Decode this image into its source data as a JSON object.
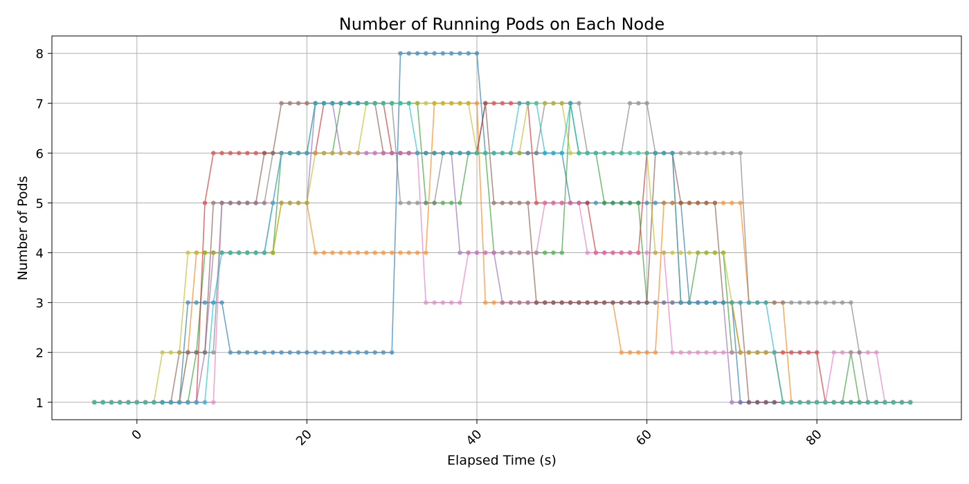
{
  "chart_data": {
    "type": "line",
    "title": "Number of Running Pods on Each Node",
    "xlabel": "Elapsed Time (s)",
    "ylabel": "Number of Pods",
    "xlim": [
      -10,
      97
    ],
    "ylim": [
      0.65,
      8.35
    ],
    "xticks": [
      0,
      20,
      40,
      60,
      80
    ],
    "yticks": [
      1,
      2,
      3,
      4,
      5,
      6,
      7,
      8
    ],
    "xtick_rotation": 45,
    "grid": true,
    "legend": "none",
    "x": [
      -5,
      -4,
      -3,
      -2,
      -1,
      0,
      1,
      2,
      3,
      4,
      5,
      6,
      7,
      8,
      9,
      10,
      11,
      12,
      13,
      14,
      15,
      16,
      17,
      18,
      19,
      20,
      21,
      22,
      23,
      24,
      25,
      26,
      27,
      28,
      29,
      30,
      31,
      32,
      33,
      34,
      35,
      36,
      37,
      38,
      39,
      40,
      41,
      42,
      43,
      44,
      45,
      46,
      47,
      48,
      49,
      50,
      51,
      52,
      53,
      54,
      55,
      56,
      57,
      58,
      59,
      60,
      61,
      62,
      63,
      64,
      65,
      66,
      67,
      68,
      69,
      70,
      71,
      72,
      73,
      74,
      75,
      76,
      77,
      78,
      79,
      80,
      81,
      82,
      83,
      84,
      85,
      86,
      87,
      88,
      89,
      90,
      91
    ],
    "series": [
      {
        "color": "#1f77b4",
        "values": [
          1,
          1,
          1,
          1,
          1,
          1,
          1,
          1,
          1,
          1,
          1,
          3,
          3,
          3,
          3,
          3,
          2,
          2,
          2,
          2,
          2,
          2,
          2,
          2,
          2,
          2,
          2,
          2,
          2,
          2,
          2,
          2,
          2,
          2,
          2,
          2,
          8,
          8,
          8,
          8,
          8,
          8,
          8,
          8,
          8,
          8,
          6,
          6,
          6,
          6,
          6,
          6,
          6,
          6,
          6,
          6,
          5,
          5,
          5,
          5,
          5,
          5,
          5,
          5,
          5,
          5,
          5,
          5,
          5,
          5,
          3,
          3,
          3,
          3,
          3,
          3,
          1,
          1,
          1,
          1,
          1,
          1,
          1,
          1,
          1,
          1,
          1,
          1,
          1,
          1,
          1,
          1,
          1,
          1,
          1,
          1,
          1
        ]
      },
      {
        "color": "#ff7f0e",
        "values": [
          1,
          1,
          1,
          1,
          1,
          1,
          1,
          1,
          1,
          1,
          1,
          2,
          4,
          4,
          4,
          4,
          4,
          4,
          4,
          4,
          4,
          4,
          5,
          5,
          5,
          5,
          4,
          4,
          4,
          4,
          4,
          4,
          4,
          4,
          4,
          4,
          4,
          4,
          4,
          4,
          7,
          7,
          7,
          7,
          7,
          7,
          3,
          3,
          3,
          3,
          3,
          3,
          3,
          3,
          3,
          3,
          3,
          3,
          3,
          3,
          3,
          3,
          2,
          2,
          2,
          2,
          2,
          5,
          5,
          5,
          5,
          5,
          5,
          5,
          5,
          5,
          5,
          3,
          3,
          3,
          3,
          3,
          1,
          1,
          1,
          1,
          1,
          1,
          1,
          1,
          1,
          1,
          1,
          1,
          1,
          1,
          1
        ]
      },
      {
        "color": "#2ca02c",
        "values": [
          1,
          1,
          1,
          1,
          1,
          1,
          1,
          1,
          1,
          1,
          1,
          1,
          2,
          4,
          4,
          4,
          4,
          4,
          4,
          4,
          4,
          4,
          6,
          6,
          6,
          6,
          6,
          6,
          6,
          7,
          7,
          7,
          7,
          7,
          7,
          7,
          7,
          7,
          7,
          5,
          5,
          5,
          5,
          5,
          6,
          6,
          6,
          4,
          4,
          4,
          4,
          4,
          4,
          4,
          4,
          4,
          7,
          6,
          6,
          6,
          5,
          5,
          5,
          5,
          5,
          3,
          3,
          3,
          3,
          3,
          3,
          4,
          4,
          4,
          4,
          2,
          2,
          2,
          2,
          2,
          2,
          1,
          1,
          1,
          1,
          1,
          1,
          1,
          1,
          2,
          1,
          1,
          1,
          1,
          1,
          1,
          1
        ]
      },
      {
        "color": "#d62728",
        "values": [
          1,
          1,
          1,
          1,
          1,
          1,
          1,
          1,
          1,
          1,
          1,
          1,
          1,
          5,
          6,
          6,
          6,
          6,
          6,
          6,
          6,
          6,
          6,
          6,
          6,
          6,
          6,
          7,
          7,
          7,
          7,
          7,
          7,
          7,
          7,
          6,
          6,
          6,
          6,
          6,
          6,
          6,
          6,
          6,
          6,
          6,
          7,
          7,
          7,
          7,
          7,
          7,
          5,
          5,
          5,
          5,
          5,
          5,
          5,
          4,
          4,
          4,
          4,
          4,
          4,
          6,
          6,
          6,
          6,
          3,
          3,
          3,
          3,
          3,
          3,
          3,
          2,
          2,
          2,
          2,
          2,
          2,
          2,
          2,
          2,
          2,
          1,
          1,
          1,
          1,
          1,
          1,
          1,
          1,
          1,
          1,
          1
        ]
      },
      {
        "color": "#9467bd",
        "values": [
          1,
          1,
          1,
          1,
          1,
          1,
          1,
          1,
          1,
          1,
          1,
          1,
          1,
          2,
          4,
          4,
          4,
          4,
          4,
          4,
          4,
          5,
          5,
          5,
          5,
          5,
          7,
          7,
          7,
          6,
          6,
          6,
          6,
          6,
          6,
          6,
          6,
          6,
          6,
          6,
          6,
          6,
          6,
          4,
          4,
          4,
          4,
          4,
          3,
          3,
          3,
          3,
          3,
          3,
          3,
          3,
          3,
          3,
          3,
          3,
          3,
          3,
          3,
          3,
          3,
          3,
          3,
          3,
          3,
          3,
          3,
          3,
          3,
          3,
          3,
          1,
          1,
          1,
          1,
          1,
          1,
          1,
          1,
          1,
          1,
          1,
          1,
          1,
          1,
          1,
          1,
          1,
          1,
          1,
          1,
          1,
          1
        ]
      },
      {
        "color": "#8c564b",
        "values": [
          1,
          1,
          1,
          1,
          1,
          1,
          1,
          1,
          1,
          1,
          2,
          2,
          2,
          2,
          5,
          5,
          5,
          5,
          5,
          5,
          6,
          6,
          7,
          7,
          7,
          7,
          7,
          7,
          7,
          7,
          7,
          7,
          7,
          7,
          6,
          6,
          6,
          6,
          6,
          6,
          6,
          6,
          6,
          6,
          6,
          6,
          7,
          5,
          5,
          5,
          5,
          5,
          3,
          3,
          3,
          3,
          3,
          3,
          3,
          3,
          3,
          3,
          3,
          3,
          3,
          3,
          6,
          6,
          6,
          5,
          5,
          5,
          5,
          5,
          3,
          3,
          3,
          1,
          1,
          1,
          1,
          1,
          1,
          1,
          1,
          1,
          1,
          1,
          1,
          1,
          1,
          1,
          1,
          1,
          1,
          1,
          1
        ]
      },
      {
        "color": "#e377c2",
        "values": [
          1,
          1,
          1,
          1,
          1,
          1,
          1,
          1,
          1,
          1,
          1,
          1,
          1,
          1,
          1,
          5,
          5,
          5,
          5,
          5,
          5,
          5,
          6,
          6,
          6,
          6,
          6,
          6,
          6,
          6,
          6,
          6,
          6,
          6,
          6,
          6,
          6,
          6,
          6,
          3,
          3,
          3,
          3,
          3,
          4,
          4,
          4,
          4,
          4,
          4,
          4,
          4,
          4,
          5,
          5,
          5,
          5,
          5,
          4,
          4,
          4,
          4,
          4,
          4,
          4,
          4,
          4,
          4,
          2,
          2,
          2,
          2,
          2,
          2,
          2,
          2,
          2,
          2,
          2,
          2,
          2,
          1,
          1,
          1,
          1,
          1,
          1,
          2,
          2,
          2,
          2,
          2,
          2,
          1,
          1,
          1,
          1
        ]
      },
      {
        "color": "#7f7f7f",
        "values": [
          1,
          1,
          1,
          1,
          1,
          1,
          1,
          1,
          1,
          1,
          1,
          2,
          2,
          2,
          2,
          5,
          5,
          5,
          5,
          5,
          5,
          6,
          6,
          6,
          6,
          6,
          7,
          7,
          7,
          7,
          7,
          7,
          7,
          7,
          7,
          7,
          5,
          5,
          5,
          5,
          5,
          6,
          6,
          6,
          6,
          6,
          6,
          6,
          6,
          6,
          6,
          6,
          6,
          7,
          7,
          7,
          7,
          7,
          6,
          6,
          6,
          6,
          6,
          7,
          7,
          7,
          6,
          6,
          6,
          6,
          6,
          6,
          6,
          6,
          6,
          6,
          6,
          3,
          3,
          3,
          3,
          3,
          3,
          3,
          3,
          3,
          3,
          3,
          3,
          3,
          2,
          1,
          1,
          1,
          1,
          1,
          1
        ]
      },
      {
        "color": "#bcbd22",
        "values": [
          1,
          1,
          1,
          1,
          1,
          1,
          1,
          1,
          2,
          2,
          2,
          4,
          4,
          4,
          4,
          4,
          4,
          4,
          4,
          4,
          4,
          4,
          5,
          5,
          5,
          5,
          6,
          6,
          6,
          6,
          6,
          6,
          7,
          7,
          7,
          7,
          7,
          7,
          7,
          7,
          7,
          7,
          7,
          7,
          7,
          6,
          6,
          6,
          6,
          6,
          6,
          7,
          7,
          7,
          7,
          7,
          6,
          6,
          6,
          6,
          6,
          6,
          6,
          6,
          6,
          6,
          4,
          4,
          4,
          4,
          4,
          4,
          4,
          4,
          4,
          3,
          2,
          2,
          2,
          2,
          2,
          1,
          1,
          1,
          1,
          1,
          1,
          1,
          1,
          1,
          1,
          1,
          1,
          1,
          1,
          1,
          1
        ]
      },
      {
        "color": "#17becf",
        "values": [
          1,
          1,
          1,
          1,
          1,
          1,
          1,
          1,
          1,
          1,
          1,
          1,
          1,
          1,
          3,
          4,
          4,
          4,
          4,
          4,
          4,
          5,
          6,
          6,
          6,
          6,
          7,
          7,
          7,
          7,
          7,
          7,
          7,
          7,
          7,
          7,
          7,
          7,
          6,
          6,
          6,
          6,
          6,
          6,
          6,
          6,
          6,
          6,
          6,
          6,
          7,
          7,
          7,
          6,
          6,
          6,
          7,
          6,
          6,
          6,
          6,
          6,
          6,
          6,
          6,
          6,
          6,
          6,
          6,
          3,
          3,
          3,
          3,
          3,
          3,
          3,
          3,
          3,
          3,
          3,
          2,
          1,
          1,
          1,
          1,
          1,
          1,
          1,
          1,
          1,
          1,
          1,
          1,
          1,
          1,
          1,
          1
        ]
      }
    ]
  }
}
